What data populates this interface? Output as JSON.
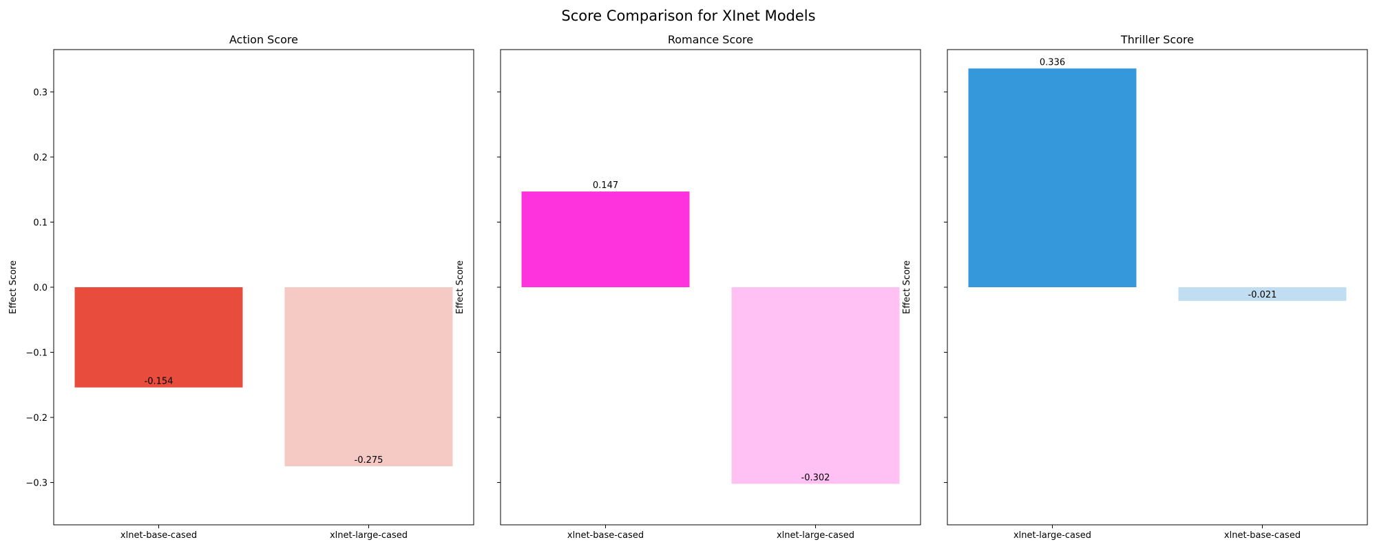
{
  "title": "Score Comparison for XInet Models",
  "chart_data": [
    {
      "type": "bar",
      "title": "Action Score",
      "ylabel": "Effect Score",
      "categories": [
        "xlnet-base-cased",
        "xlnet-large-cased"
      ],
      "values": [
        -0.154,
        -0.275
      ],
      "labels": [
        "-0.154",
        "-0.275"
      ],
      "colors": [
        "#e74c3c",
        "#f5c9c4"
      ],
      "ylim": [
        -0.365,
        0.365
      ],
      "yticks": [
        -0.3,
        -0.2,
        -0.1,
        0.0,
        0.1,
        0.2,
        0.3
      ],
      "ytick_labels": [
        "−0.3",
        "−0.2",
        "−0.1",
        "0.0",
        "0.1",
        "0.2",
        "0.3"
      ],
      "grid": false,
      "legend": "none"
    },
    {
      "type": "bar",
      "title": "Romance Score",
      "ylabel": "Effect Score",
      "categories": [
        "xlnet-base-cased",
        "xlnet-large-cased"
      ],
      "values": [
        0.147,
        -0.302
      ],
      "labels": [
        "0.147",
        "-0.302"
      ],
      "colors": [
        "#ff33dd",
        "#ffc0f4"
      ],
      "ylim": [
        -0.365,
        0.365
      ],
      "yticks": [
        -0.3,
        -0.2,
        -0.1,
        0.0,
        0.1,
        0.2,
        0.3
      ],
      "ytick_labels": [
        "",
        "",
        "",
        "",
        "",
        "",
        ""
      ],
      "grid": false,
      "legend": "none"
    },
    {
      "type": "bar",
      "title": "Thriller Score",
      "ylabel": "Effect Score",
      "categories": [
        "xlnet-large-cased",
        "xlnet-base-cased"
      ],
      "values": [
        0.336,
        -0.021
      ],
      "labels": [
        "0.336",
        "-0.021"
      ],
      "colors": [
        "#3498db",
        "#c0ddf2"
      ],
      "ylim": [
        -0.365,
        0.365
      ],
      "yticks": [
        -0.3,
        -0.2,
        -0.1,
        0.0,
        0.1,
        0.2,
        0.3
      ],
      "ytick_labels": [
        "",
        "",
        "",
        "",
        "",
        "",
        ""
      ],
      "grid": false,
      "legend": "none"
    }
  ]
}
